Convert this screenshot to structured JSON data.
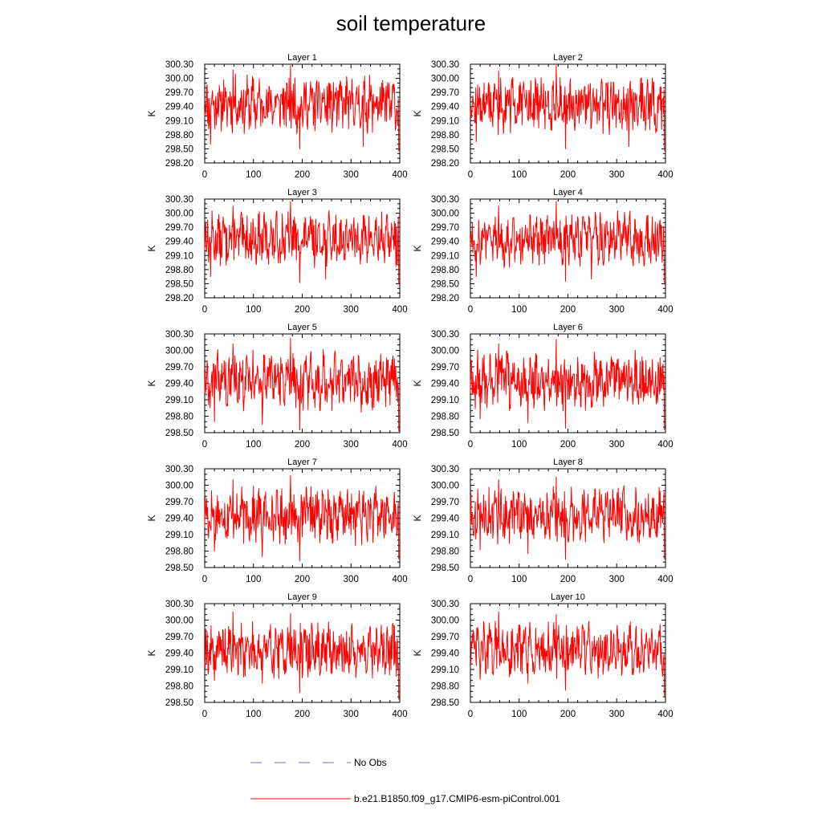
{
  "title": "soil temperature",
  "colors": {
    "model_line": "#ff0000",
    "obs_line": "#6f6fbf",
    "axis": "#000000"
  },
  "legend": {
    "obs_label": "No Obs",
    "model_label": "b.e21.B1850.f09_g17.CMIP6-esm-piControl.001"
  },
  "chart_data": {
    "type": "line",
    "grid": false,
    "legend_placement": "bottom",
    "panels": [
      {
        "title": "Layer 1",
        "ylabel": "K",
        "xlim": [
          0,
          400
        ],
        "ylim": [
          298.2,
          300.3
        ],
        "xticks": [
          0,
          100,
          200,
          300,
          400
        ],
        "yticks": [
          "298.20",
          "298.50",
          "298.80",
          "299.10",
          "299.40",
          "299.70",
          "300.00",
          "300.30"
        ],
        "series": {
          "name": "b.e21.B1850.f09_g17.CMIP6-esm-piControl.001",
          "mean": 299.45,
          "amplitude": 0.5,
          "seed": 11,
          "extremes": [
            [
              58,
              300.18
            ],
            [
              176,
              300.27
            ],
            [
              195,
              298.5
            ],
            [
              325,
              298.55
            ],
            [
              398,
              298.45
            ],
            [
              12,
              298.6
            ]
          ]
        }
      },
      {
        "title": "Layer 2",
        "ylabel": "K",
        "xlim": [
          0,
          400
        ],
        "ylim": [
          298.2,
          300.3
        ],
        "xticks": [
          0,
          100,
          200,
          300,
          400
        ],
        "yticks": [
          "298.20",
          "298.50",
          "298.80",
          "299.10",
          "299.40",
          "299.70",
          "300.00",
          "300.30"
        ],
        "series": {
          "name": "b.e21.B1850.f09_g17.CMIP6-esm-piControl.001",
          "mean": 299.45,
          "amplitude": 0.5,
          "seed": 12,
          "extremes": [
            [
              58,
              300.15
            ],
            [
              176,
              300.27
            ],
            [
              195,
              298.5
            ],
            [
              325,
              298.55
            ],
            [
              398,
              298.45
            ],
            [
              12,
              298.65
            ]
          ]
        }
      },
      {
        "title": "Layer 3",
        "ylabel": "K",
        "xlim": [
          0,
          400
        ],
        "ylim": [
          298.2,
          300.3
        ],
        "xticks": [
          0,
          100,
          200,
          300,
          400
        ],
        "yticks": [
          "298.20",
          "298.50",
          "298.80",
          "299.10",
          "299.40",
          "299.70",
          "300.00",
          "300.30"
        ],
        "series": {
          "name": "b.e21.B1850.f09_g17.CMIP6-esm-piControl.001",
          "mean": 299.45,
          "amplitude": 0.48,
          "seed": 13,
          "extremes": [
            [
              58,
              300.15
            ],
            [
              176,
              300.25
            ],
            [
              195,
              298.52
            ],
            [
              248,
              298.6
            ],
            [
              398,
              298.5
            ],
            [
              12,
              298.65
            ]
          ]
        }
      },
      {
        "title": "Layer 4",
        "ylabel": "K",
        "xlim": [
          0,
          400
        ],
        "ylim": [
          298.2,
          300.3
        ],
        "xticks": [
          0,
          100,
          200,
          300,
          400
        ],
        "yticks": [
          "298.20",
          "298.50",
          "298.80",
          "299.10",
          "299.40",
          "299.70",
          "300.00",
          "300.30"
        ],
        "series": {
          "name": "b.e21.B1850.f09_g17.CMIP6-esm-piControl.001",
          "mean": 299.45,
          "amplitude": 0.48,
          "seed": 14,
          "extremes": [
            [
              58,
              300.15
            ],
            [
              176,
              300.25
            ],
            [
              195,
              298.55
            ],
            [
              248,
              298.6
            ],
            [
              398,
              298.48
            ],
            [
              12,
              298.65
            ]
          ]
        }
      },
      {
        "title": "Layer 5",
        "ylabel": "K",
        "xlim": [
          0,
          400
        ],
        "ylim": [
          298.5,
          300.3
        ],
        "xticks": [
          0,
          100,
          200,
          300,
          400
        ],
        "yticks": [
          "298.50",
          "298.80",
          "299.10",
          "299.40",
          "299.70",
          "300.00",
          "300.30"
        ],
        "series": {
          "name": "b.e21.B1850.f09_g17.CMIP6-esm-piControl.001",
          "mean": 299.45,
          "amplitude": 0.45,
          "seed": 15,
          "extremes": [
            [
              58,
              300.12
            ],
            [
              176,
              300.22
            ],
            [
              195,
              298.55
            ],
            [
              118,
              298.65
            ],
            [
              398,
              298.5
            ],
            [
              20,
              298.7
            ]
          ]
        }
      },
      {
        "title": "Layer 6",
        "ylabel": "K",
        "xlim": [
          0,
          400
        ],
        "ylim": [
          298.5,
          300.3
        ],
        "xticks": [
          0,
          100,
          200,
          300,
          400
        ],
        "yticks": [
          "298.50",
          "298.80",
          "299.10",
          "299.40",
          "299.70",
          "300.00",
          "300.30"
        ],
        "series": {
          "name": "b.e21.B1850.f09_g17.CMIP6-esm-piControl.001",
          "mean": 299.45,
          "amplitude": 0.45,
          "seed": 16,
          "extremes": [
            [
              58,
              300.12
            ],
            [
              176,
              300.2
            ],
            [
              195,
              298.58
            ],
            [
              118,
              298.68
            ],
            [
              398,
              298.55
            ],
            [
              20,
              298.75
            ]
          ]
        }
      },
      {
        "title": "Layer 7",
        "ylabel": "K",
        "xlim": [
          0,
          400
        ],
        "ylim": [
          298.5,
          300.3
        ],
        "xticks": [
          0,
          100,
          200,
          300,
          400
        ],
        "yticks": [
          "298.50",
          "298.80",
          "299.10",
          "299.40",
          "299.70",
          "300.00",
          "300.30"
        ],
        "series": {
          "name": "b.e21.B1850.f09_g17.CMIP6-esm-piControl.001",
          "mean": 299.45,
          "amplitude": 0.43,
          "seed": 17,
          "extremes": [
            [
              58,
              300.1
            ],
            [
              176,
              300.18
            ],
            [
              195,
              298.62
            ],
            [
              118,
              298.7
            ],
            [
              398,
              298.65
            ],
            [
              20,
              298.8
            ]
          ]
        }
      },
      {
        "title": "Layer 8",
        "ylabel": "K",
        "xlim": [
          0,
          400
        ],
        "ylim": [
          298.5,
          300.3
        ],
        "xticks": [
          0,
          100,
          200,
          300,
          400
        ],
        "yticks": [
          "298.50",
          "298.80",
          "299.10",
          "299.40",
          "299.70",
          "300.00",
          "300.30"
        ],
        "series": {
          "name": "b.e21.B1850.f09_g17.CMIP6-esm-piControl.001",
          "mean": 299.45,
          "amplitude": 0.43,
          "seed": 18,
          "extremes": [
            [
              58,
              300.1
            ],
            [
              176,
              300.15
            ],
            [
              195,
              298.65
            ],
            [
              118,
              298.75
            ],
            [
              398,
              298.65
            ],
            [
              20,
              298.82
            ]
          ]
        }
      },
      {
        "title": "Layer 9",
        "ylabel": "K",
        "xlim": [
          0,
          400
        ],
        "ylim": [
          298.5,
          300.3
        ],
        "xticks": [
          0,
          100,
          200,
          300,
          400
        ],
        "yticks": [
          "298.50",
          "298.80",
          "299.10",
          "299.40",
          "299.70",
          "300.00",
          "300.30"
        ],
        "series": {
          "name": "b.e21.B1850.f09_g17.CMIP6-esm-piControl.001",
          "mean": 299.45,
          "amplitude": 0.42,
          "seed": 19,
          "extremes": [
            [
              58,
              300.15
            ],
            [
              176,
              300.12
            ],
            [
              195,
              298.68
            ],
            [
              118,
              298.85
            ],
            [
              398,
              298.55
            ],
            [
              20,
              298.9
            ]
          ]
        }
      },
      {
        "title": "Layer 10",
        "ylabel": "K",
        "xlim": [
          0,
          400
        ],
        "ylim": [
          298.5,
          300.3
        ],
        "xticks": [
          0,
          100,
          200,
          300,
          400
        ],
        "yticks": [
          "298.50",
          "298.80",
          "299.10",
          "299.40",
          "299.70",
          "300.00",
          "300.30"
        ],
        "series": {
          "name": "b.e21.B1850.f09_g17.CMIP6-esm-piControl.001",
          "mean": 299.45,
          "amplitude": 0.42,
          "seed": 20,
          "extremes": [
            [
              58,
              300.15
            ],
            [
              176,
              300.1
            ],
            [
              195,
              298.72
            ],
            [
              118,
              298.85
            ],
            [
              398,
              298.6
            ],
            [
              20,
              298.92
            ]
          ]
        }
      }
    ]
  }
}
